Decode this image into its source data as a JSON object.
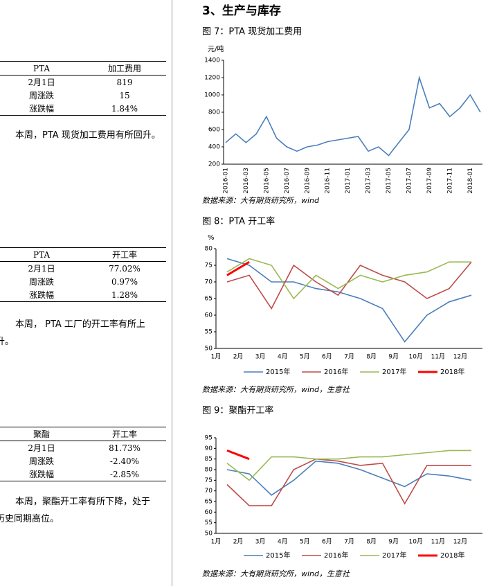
{
  "tables": [
    {
      "header": [
        "PTA",
        "加工费用"
      ],
      "rows": [
        [
          "2月1日",
          "819"
        ],
        [
          "周涨跌",
          "15"
        ],
        [
          "涨跌幅",
          "1.84%"
        ]
      ]
    },
    {
      "header": [
        "PTA",
        "开工率"
      ],
      "rows": [
        [
          "2月1日",
          "77.02%"
        ],
        [
          "周涨跌",
          "0.97%"
        ],
        [
          "涨跌幅",
          "1.28%"
        ]
      ]
    },
    {
      "header": [
        "聚酯",
        "开工率"
      ],
      "rows": [
        [
          "2月1日",
          "81.73%"
        ],
        [
          "周涨跌",
          "-2.40%"
        ],
        [
          "涨跌幅",
          "-2.85%"
        ]
      ]
    }
  ],
  "paragraphs": [
    [
      "本周，PTA 现货加工费用有所回升。"
    ],
    [
      "本周， PTA 工厂的开工率有所上",
      "升。"
    ],
    [
      "本周，聚酯开工率有所下降，处于",
      "历史同期高位。"
    ]
  ],
  "section_title": "3、生产与库存",
  "chart_data": [
    {
      "type": "line",
      "title": "图 7：PTA 现货加工费用",
      "y_label": "元/吨",
      "categories": [
        "2016-01",
        null,
        "2016-03",
        null,
        "2016-05",
        null,
        "2016-07",
        null,
        "2016-09",
        null,
        "2016-11",
        null,
        "2017-01",
        null,
        "2017-03",
        null,
        "2017-05",
        null,
        "2017-07",
        null,
        "2017-09",
        null,
        "2017-11",
        null,
        "2018-01",
        null
      ],
      "values": [
        450,
        550,
        450,
        550,
        750,
        500,
        400,
        350,
        400,
        420,
        460,
        480,
        500,
        520,
        350,
        400,
        300,
        450,
        600,
        1200,
        850,
        900,
        750,
        850,
        1000,
        800
      ],
      "color": "#4a7ebb",
      "ylim": [
        200,
        1400
      ],
      "yticks": [
        200,
        400,
        600,
        800,
        1000,
        1200,
        1400
      ],
      "source": "数据来源：大有期货研究所，wind"
    },
    {
      "type": "line",
      "title": "图 8：PTA 开工率",
      "y_label": "%",
      "categories": [
        "1月",
        "2月",
        "3月",
        "4月",
        "5月",
        "6月",
        "7月",
        "8月",
        "9月",
        "10月",
        "11月",
        "12月"
      ],
      "series": [
        {
          "name": "2015年",
          "color": "#4a7ebb",
          "values": [
            77,
            75,
            70,
            70,
            68,
            67,
            65,
            62,
            52,
            60,
            64,
            66
          ]
        },
        {
          "name": "2016年",
          "color": "#be4b48",
          "values": [
            70,
            72,
            62,
            75,
            70,
            66,
            75,
            72,
            70,
            65,
            68,
            76
          ]
        },
        {
          "name": "2017年",
          "color": "#98b954",
          "values": [
            73,
            77,
            75,
            65,
            72,
            68,
            72,
            70,
            72,
            73,
            76,
            76
          ]
        },
        {
          "name": "2018年",
          "color": "#ff0000",
          "values": [
            72,
            76,
            null,
            null,
            null,
            null,
            null,
            null,
            null,
            null,
            null,
            null
          ]
        }
      ],
      "ylim": [
        50,
        80
      ],
      "yticks": [
        50,
        55,
        60,
        65,
        70,
        75,
        80
      ],
      "source": "数据来源：大有期货研究所，wind，生意社"
    },
    {
      "type": "line",
      "title": "图 9：聚酯开工率",
      "categories": [
        "1月",
        "2月",
        "3月",
        "4月",
        "5月",
        "6月",
        "7月",
        "8月",
        "9月",
        "10月",
        "11月",
        "12月"
      ],
      "series": [
        {
          "name": "2015年",
          "color": "#4a7ebb",
          "values": [
            80,
            78,
            68,
            75,
            84,
            83,
            80,
            76,
            72,
            78,
            77,
            75
          ]
        },
        {
          "name": "2016年",
          "color": "#be4b48",
          "values": [
            73,
            63,
            63,
            80,
            85,
            84,
            82,
            83,
            64,
            82,
            82,
            82
          ]
        },
        {
          "name": "2017年",
          "color": "#98b954",
          "values": [
            83,
            75,
            86,
            86,
            85,
            85,
            86,
            86,
            87,
            88,
            89,
            89
          ]
        },
        {
          "name": "2018年",
          "color": "#ff0000",
          "values": [
            89,
            85,
            null,
            null,
            null,
            null,
            null,
            null,
            null,
            null,
            null,
            null
          ]
        }
      ],
      "ylim": [
        50,
        95
      ],
      "yticks": [
        50,
        55,
        60,
        65,
        70,
        75,
        80,
        85,
        90,
        95
      ],
      "source": "数据来源：大有期货研究所，wind，生意社"
    }
  ]
}
